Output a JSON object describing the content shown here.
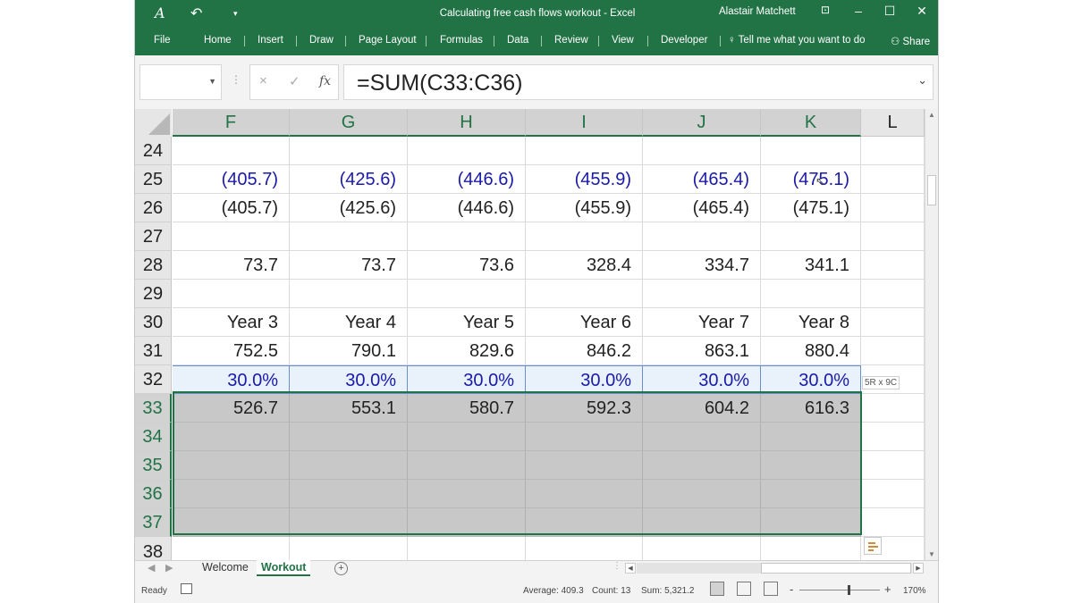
{
  "titlebar": {
    "title": "Calculating free cash flows workout  -  Excel",
    "user": "Alastair Matchett",
    "icons": [
      "autosave-icon",
      "undo-icon",
      "customize-qat-icon",
      "ribbon-display-icon",
      "minimize-icon",
      "maximize-icon",
      "close-icon"
    ]
  },
  "ribbon": {
    "tabs": [
      "File",
      "Home",
      "Insert",
      "Draw",
      "Page Layout",
      "Formulas",
      "Data",
      "Review",
      "View",
      "Developer"
    ],
    "tell_me": "Tell me what you want to do",
    "share": "Share"
  },
  "formula_bar": {
    "name_box": "",
    "cancel": "×",
    "enter": "✓",
    "fx": "fx",
    "formula": "=SUM(C33:C36)"
  },
  "grid": {
    "columns": [
      "F",
      "G",
      "H",
      "I",
      "J",
      "K",
      "L"
    ],
    "rows": [
      {
        "num": "24",
        "cells": [
          "",
          "",
          "",
          "",
          "",
          ""
        ]
      },
      {
        "num": "25",
        "cells": [
          "(405.7)",
          "(425.6)",
          "(446.6)",
          "(455.9)",
          "(465.4)",
          "(475.1)"
        ]
      },
      {
        "num": "26",
        "cells": [
          "(405.7)",
          "(425.6)",
          "(446.6)",
          "(455.9)",
          "(465.4)",
          "(475.1)"
        ]
      },
      {
        "num": "27",
        "cells": [
          "",
          "",
          "",
          "",
          "",
          ""
        ]
      },
      {
        "num": "28",
        "cells": [
          "73.7",
          "73.7",
          "73.6",
          "328.4",
          "334.7",
          "341.1"
        ]
      },
      {
        "num": "29",
        "cells": [
          "",
          "",
          "",
          "",
          "",
          ""
        ]
      },
      {
        "num": "30",
        "cells": [
          "Year 3",
          "Year 4",
          "Year 5",
          "Year 6",
          "Year 7",
          "Year 8"
        ]
      },
      {
        "num": "31",
        "cells": [
          "752.5",
          "790.1",
          "829.6",
          "846.2",
          "863.1",
          "880.4"
        ]
      },
      {
        "num": "32",
        "cells": [
          "30.0%",
          "30.0%",
          "30.0%",
          "30.0%",
          "30.0%",
          "30.0%"
        ]
      },
      {
        "num": "33",
        "cells": [
          "526.7",
          "553.1",
          "580.7",
          "592.3",
          "604.2",
          "616.3"
        ]
      },
      {
        "num": "34",
        "cells": [
          "",
          "",
          "",
          "",
          "",
          ""
        ]
      },
      {
        "num": "35",
        "cells": [
          "",
          "",
          "",
          "",
          "",
          ""
        ]
      },
      {
        "num": "36",
        "cells": [
          "",
          "",
          "",
          "",
          "",
          ""
        ]
      },
      {
        "num": "37",
        "cells": [
          "",
          "",
          "",
          "",
          "",
          ""
        ]
      },
      {
        "num": "38",
        "cells": [
          "",
          "",
          "",
          "",
          "",
          ""
        ]
      }
    ],
    "selection_tip": "5R x 9C",
    "accent": "#217346",
    "input_color": "#1a1aa8"
  },
  "sheets": {
    "tabs": [
      "Welcome",
      "Workout"
    ],
    "active": "Workout"
  },
  "status": {
    "mode": "Ready",
    "average": "Average: 409.3",
    "count": "Count: 13",
    "sum": "Sum: 5,321.2",
    "zoom": "170%"
  }
}
